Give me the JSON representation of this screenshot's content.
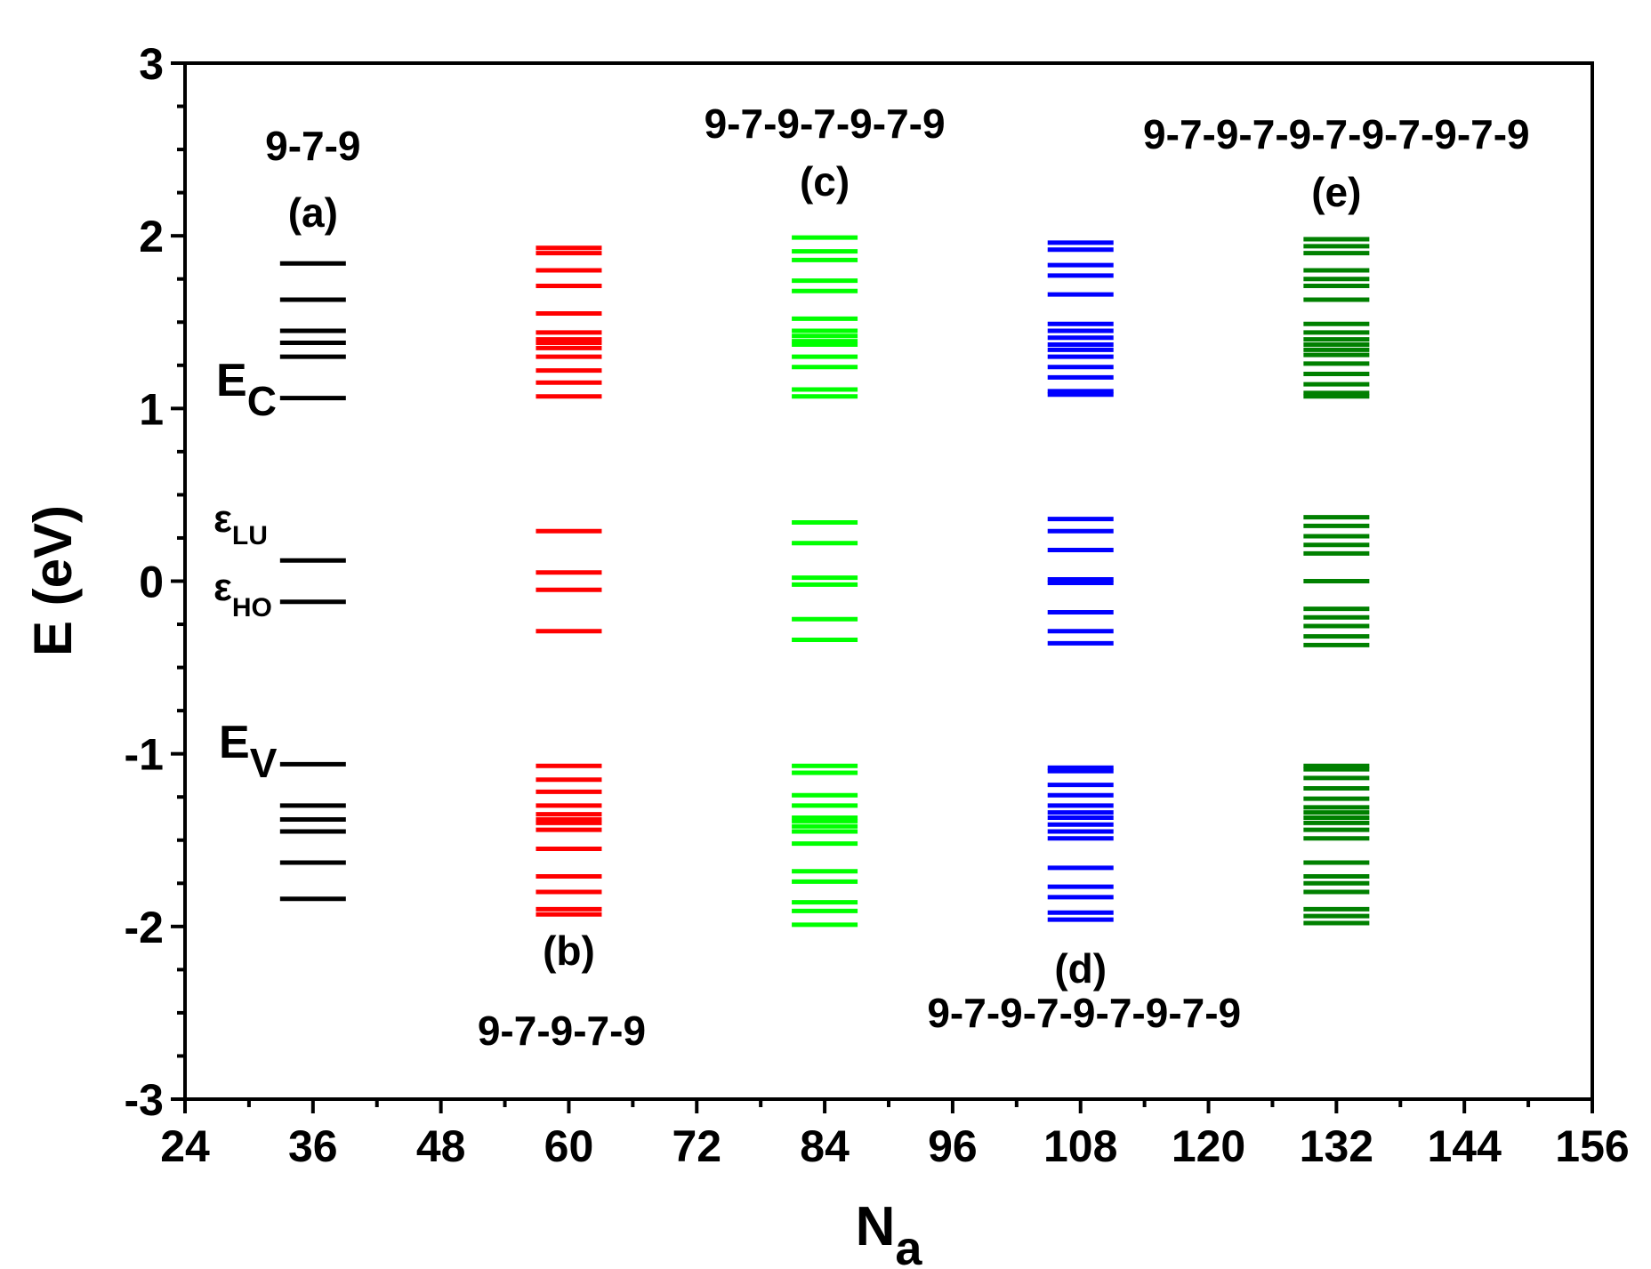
{
  "chart_data": {
    "type": "energy-level",
    "xlabel": "N",
    "xlabel_sub": "a",
    "ylabel": "E (eV)",
    "xlim": [
      24,
      156
    ],
    "ylim": [
      -3,
      3
    ],
    "xticks": [
      24,
      36,
      48,
      60,
      72,
      84,
      96,
      108,
      120,
      132,
      144,
      156
    ],
    "xtick_labels": [
      "24",
      "36",
      "48",
      "60",
      "72",
      "84",
      "96",
      "108",
      "120",
      "132",
      "144",
      "156"
    ],
    "yticks": [
      -3,
      -2,
      -1,
      0,
      1,
      2,
      3
    ],
    "ytick_labels": [
      "-3",
      "-2",
      "-1",
      "0",
      "1",
      "2",
      "3"
    ],
    "level_annotations": {
      "ec": {
        "main": "E",
        "sub": "C",
        "y": 1.05
      },
      "elu": {
        "main": "ε",
        "sub": "LU",
        "y": 0.12
      },
      "eho": {
        "main": "ε",
        "sub": "HO",
        "y": -0.12
      },
      "ev": {
        "main": "E",
        "sub": "V",
        "y": -1.05
      }
    },
    "series": [
      {
        "name": "(a)",
        "structure": "9-7-9",
        "n_atoms": 36,
        "color": "#000000",
        "label_position": "top",
        "levels": [
          -1.84,
          -1.63,
          -1.45,
          -1.38,
          -1.3,
          -1.06,
          -0.12,
          0.12,
          1.06,
          1.3,
          1.38,
          1.45,
          1.63,
          1.84
        ]
      },
      {
        "name": "(b)",
        "structure": "9-7-9-7-9",
        "n_atoms": 60,
        "color": "#ff0000",
        "label_position": "bottom",
        "levels": [
          -1.93,
          -1.9,
          -1.8,
          -1.71,
          -1.55,
          -1.44,
          -1.4,
          -1.38,
          -1.35,
          -1.3,
          -1.22,
          -1.15,
          -1.07,
          -0.29,
          -0.05,
          0.05,
          0.29,
          1.07,
          1.15,
          1.22,
          1.3,
          1.35,
          1.38,
          1.4,
          1.44,
          1.55,
          1.71,
          1.8,
          1.9,
          1.93
        ]
      },
      {
        "name": "(c)",
        "structure": "9-7-9-7-9-7-9",
        "n_atoms": 84,
        "color": "#00ff00",
        "label_position": "top",
        "levels": [
          -1.99,
          -1.91,
          -1.86,
          -1.74,
          -1.68,
          -1.52,
          -1.45,
          -1.42,
          -1.39,
          -1.37,
          -1.3,
          -1.24,
          -1.11,
          -1.07,
          -0.34,
          -0.22,
          -0.02,
          0.02,
          0.22,
          0.34,
          1.07,
          1.11,
          1.24,
          1.3,
          1.37,
          1.39,
          1.42,
          1.45,
          1.52,
          1.68,
          1.74,
          1.86,
          1.91,
          1.99
        ]
      },
      {
        "name": "(d)",
        "structure": "9-7-9-7-9-7-9-7-9",
        "n_atoms": 108,
        "color": "#0000ff",
        "label_position": "bottom",
        "levels": [
          -1.96,
          -1.92,
          -1.83,
          -1.77,
          -1.66,
          -1.49,
          -1.45,
          -1.41,
          -1.37,
          -1.34,
          -1.3,
          -1.24,
          -1.18,
          -1.1,
          -1.08,
          -0.36,
          -0.29,
          -0.18,
          -0.01,
          0.01,
          0.18,
          0.29,
          0.36,
          1.08,
          1.1,
          1.18,
          1.24,
          1.3,
          1.34,
          1.37,
          1.41,
          1.45,
          1.49,
          1.66,
          1.77,
          1.83,
          1.92,
          1.96
        ]
      },
      {
        "name": "(e)",
        "structure": "9-7-9-7-9-7-9-7-9-7-9",
        "n_atoms": 132,
        "color": "#008000",
        "label_position": "top",
        "levels": [
          -1.98,
          -1.94,
          -1.9,
          -1.8,
          -1.75,
          -1.71,
          -1.63,
          -1.49,
          -1.44,
          -1.4,
          -1.37,
          -1.34,
          -1.31,
          -1.26,
          -1.2,
          -1.14,
          -1.09,
          -1.07,
          -0.37,
          -0.32,
          -0.26,
          -0.21,
          -0.16,
          0.0,
          0.16,
          0.21,
          0.26,
          0.32,
          0.37,
          1.07,
          1.09,
          1.14,
          1.2,
          1.26,
          1.31,
          1.34,
          1.37,
          1.4,
          1.44,
          1.49,
          1.63,
          1.71,
          1.75,
          1.8,
          1.9,
          1.94,
          1.98
        ]
      }
    ]
  }
}
